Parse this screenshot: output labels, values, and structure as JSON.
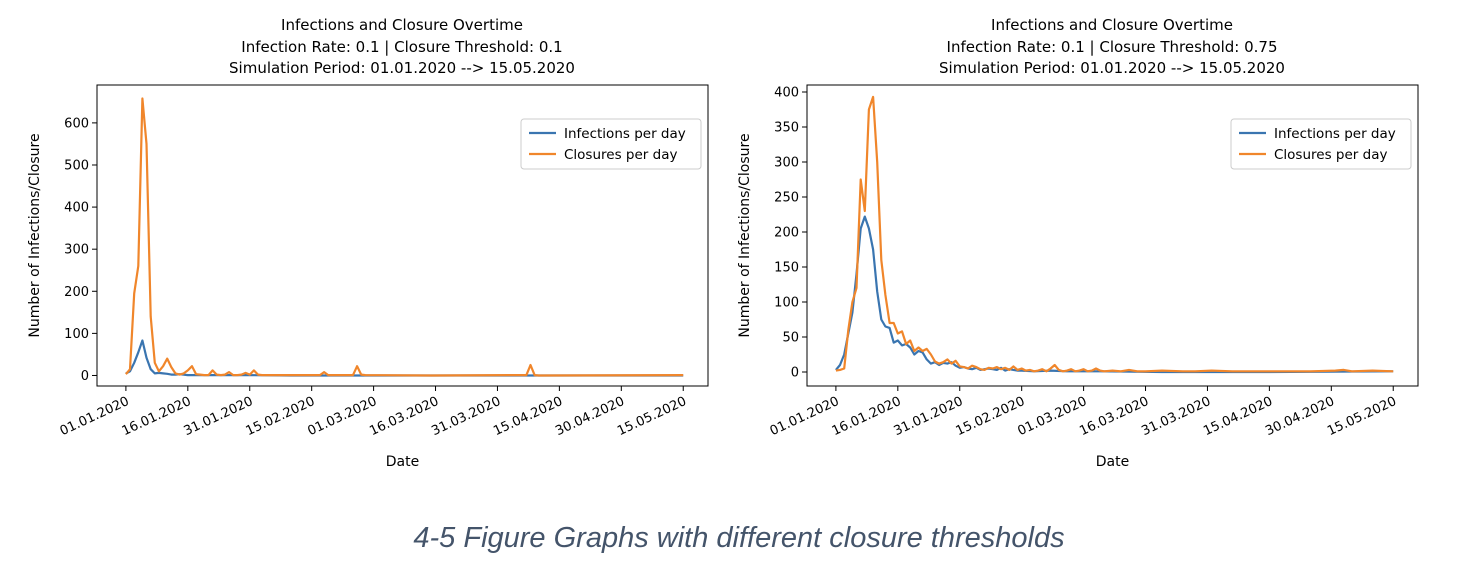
{
  "caption": "4-5 Figure Graphs with different closure thresholds",
  "colors": {
    "infections": "#3a75b0",
    "closures": "#f0862b"
  },
  "chart_data": [
    {
      "type": "line",
      "title_lines": [
        "Infections and Closure Overtime",
        "Infection Rate: 0.1 | Closure Threshold: 0.1",
        "Simulation Period: 01.01.2020 --> 15.05.2020"
      ],
      "xlabel": "Date",
      "ylabel": "Number of Infections/Closure",
      "x_type": "date",
      "x_range": [
        "2020-01-01",
        "2020-05-15"
      ],
      "xlim": [
        "2019-12-25",
        "2020-05-21"
      ],
      "ylim": [
        -25,
        690
      ],
      "yticks": [
        0,
        100,
        200,
        300,
        400,
        500,
        600
      ],
      "xtick_labels": [
        "01.01.2020",
        "16.01.2020",
        "31.01.2020",
        "15.02.2020",
        "01.03.2020",
        "16.03.2020",
        "31.03.2020",
        "15.04.2020",
        "30.04.2020",
        "15.05.2020"
      ],
      "xtick_dates": [
        "2020-01-01",
        "2020-01-16",
        "2020-01-31",
        "2020-02-15",
        "2020-03-01",
        "2020-03-16",
        "2020-03-31",
        "2020-04-15",
        "2020-04-30",
        "2020-05-15"
      ],
      "legend_position": "upper right",
      "grid": false,
      "series": [
        {
          "name": "Infections per day",
          "color": "#3a75b0",
          "points": [
            [
              "2020-01-01",
              5
            ],
            [
              "2020-01-02",
              10
            ],
            [
              "2020-01-03",
              30
            ],
            [
              "2020-01-04",
              55
            ],
            [
              "2020-01-05",
              83
            ],
            [
              "2020-01-06",
              42
            ],
            [
              "2020-01-07",
              15
            ],
            [
              "2020-01-08",
              5
            ],
            [
              "2020-01-09",
              6
            ],
            [
              "2020-01-10",
              5
            ],
            [
              "2020-01-11",
              4
            ],
            [
              "2020-01-12",
              2
            ],
            [
              "2020-01-13",
              2
            ],
            [
              "2020-01-14",
              3
            ],
            [
              "2020-01-15",
              2
            ],
            [
              "2020-01-16",
              1
            ],
            [
              "2020-01-17",
              1
            ],
            [
              "2020-01-20",
              1
            ],
            [
              "2020-01-25",
              1
            ],
            [
              "2020-01-30",
              1
            ],
            [
              "2020-02-10",
              0
            ],
            [
              "2020-03-01",
              0
            ],
            [
              "2020-04-01",
              0
            ],
            [
              "2020-05-15",
              0
            ]
          ]
        },
        {
          "name": "Closures per day",
          "color": "#f0862b",
          "points": [
            [
              "2020-01-01",
              3
            ],
            [
              "2020-01-02",
              15
            ],
            [
              "2020-01-03",
              195
            ],
            [
              "2020-01-04",
              260
            ],
            [
              "2020-01-05",
              658
            ],
            [
              "2020-01-06",
              550
            ],
            [
              "2020-01-07",
              140
            ],
            [
              "2020-01-08",
              30
            ],
            [
              "2020-01-09",
              10
            ],
            [
              "2020-01-10",
              22
            ],
            [
              "2020-01-11",
              40
            ],
            [
              "2020-01-12",
              20
            ],
            [
              "2020-01-13",
              5
            ],
            [
              "2020-01-14",
              2
            ],
            [
              "2020-01-15",
              5
            ],
            [
              "2020-01-16",
              12
            ],
            [
              "2020-01-17",
              22
            ],
            [
              "2020-01-18",
              3
            ],
            [
              "2020-01-19",
              2
            ],
            [
              "2020-01-20",
              1
            ],
            [
              "2020-01-21",
              1
            ],
            [
              "2020-01-22",
              12
            ],
            [
              "2020-01-23",
              2
            ],
            [
              "2020-01-24",
              1
            ],
            [
              "2020-01-25",
              2
            ],
            [
              "2020-01-26",
              8
            ],
            [
              "2020-01-27",
              1
            ],
            [
              "2020-01-28",
              1
            ],
            [
              "2020-01-29",
              2
            ],
            [
              "2020-01-30",
              6
            ],
            [
              "2020-01-31",
              2
            ],
            [
              "2020-02-01",
              12
            ],
            [
              "2020-02-02",
              2
            ],
            [
              "2020-02-03",
              1
            ],
            [
              "2020-02-08",
              1
            ],
            [
              "2020-02-17",
              1
            ],
            [
              "2020-02-18",
              8
            ],
            [
              "2020-02-19",
              1
            ],
            [
              "2020-02-25",
              1
            ],
            [
              "2020-02-26",
              22
            ],
            [
              "2020-02-27",
              2
            ],
            [
              "2020-02-28",
              1
            ],
            [
              "2020-03-15",
              0
            ],
            [
              "2020-04-05",
              1
            ],
            [
              "2020-04-07",
              1
            ],
            [
              "2020-04-08",
              25
            ],
            [
              "2020-04-09",
              1
            ],
            [
              "2020-04-10",
              0
            ],
            [
              "2020-05-15",
              1
            ]
          ]
        }
      ]
    },
    {
      "type": "line",
      "title_lines": [
        "Infections and Closure Overtime",
        "Infection Rate: 0.1 | Closure Threshold: 0.75",
        "Simulation Period: 01.01.2020 --> 15.05.2020"
      ],
      "xlabel": "Date",
      "ylabel": "Number of Infections/Closure",
      "x_type": "date",
      "x_range": [
        "2020-01-01",
        "2020-05-15"
      ],
      "xlim": [
        "2019-12-25",
        "2020-05-21"
      ],
      "ylim": [
        -20,
        410
      ],
      "yticks": [
        0,
        50,
        100,
        150,
        200,
        250,
        300,
        350,
        400
      ],
      "xtick_labels": [
        "01.01.2020",
        "16.01.2020",
        "31.01.2020",
        "15.02.2020",
        "01.03.2020",
        "16.03.2020",
        "31.03.2020",
        "15.04.2020",
        "30.04.2020",
        "15.05.2020"
      ],
      "xtick_dates": [
        "2020-01-01",
        "2020-01-16",
        "2020-01-31",
        "2020-02-15",
        "2020-03-01",
        "2020-03-16",
        "2020-03-31",
        "2020-04-15",
        "2020-04-30",
        "2020-05-15"
      ],
      "legend_position": "upper right",
      "grid": false,
      "series": [
        {
          "name": "Infections per day",
          "color": "#3a75b0",
          "points": [
            [
              "2020-01-01",
              3
            ],
            [
              "2020-01-02",
              10
            ],
            [
              "2020-01-03",
              25
            ],
            [
              "2020-01-04",
              55
            ],
            [
              "2020-01-05",
              85
            ],
            [
              "2020-01-06",
              140
            ],
            [
              "2020-01-07",
              205
            ],
            [
              "2020-01-08",
              222
            ],
            [
              "2020-01-09",
              205
            ],
            [
              "2020-01-10",
              175
            ],
            [
              "2020-01-11",
              115
            ],
            [
              "2020-01-12",
              75
            ],
            [
              "2020-01-13",
              65
            ],
            [
              "2020-01-14",
              63
            ],
            [
              "2020-01-15",
              42
            ],
            [
              "2020-01-16",
              45
            ],
            [
              "2020-01-17",
              38
            ],
            [
              "2020-01-18",
              40
            ],
            [
              "2020-01-19",
              35
            ],
            [
              "2020-01-20",
              25
            ],
            [
              "2020-01-21",
              30
            ],
            [
              "2020-01-22",
              28
            ],
            [
              "2020-01-23",
              18
            ],
            [
              "2020-01-24",
              12
            ],
            [
              "2020-01-25",
              14
            ],
            [
              "2020-01-26",
              10
            ],
            [
              "2020-01-27",
              13
            ],
            [
              "2020-01-28",
              12
            ],
            [
              "2020-01-29",
              14
            ],
            [
              "2020-01-30",
              9
            ],
            [
              "2020-01-31",
              6
            ],
            [
              "2020-02-01",
              7
            ],
            [
              "2020-02-02",
              5
            ],
            [
              "2020-02-03",
              4
            ],
            [
              "2020-02-04",
              6
            ],
            [
              "2020-02-05",
              3
            ],
            [
              "2020-02-06",
              4
            ],
            [
              "2020-02-07",
              5
            ],
            [
              "2020-02-08",
              4
            ],
            [
              "2020-02-09",
              3
            ],
            [
              "2020-02-10",
              6
            ],
            [
              "2020-02-11",
              2
            ],
            [
              "2020-02-12",
              4
            ],
            [
              "2020-02-13",
              3
            ],
            [
              "2020-02-14",
              2
            ],
            [
              "2020-02-15",
              2
            ],
            [
              "2020-02-18",
              1
            ],
            [
              "2020-02-22",
              2
            ],
            [
              "2020-02-26",
              1
            ],
            [
              "2020-03-05",
              1
            ],
            [
              "2020-03-20",
              0
            ],
            [
              "2020-04-15",
              0
            ],
            [
              "2020-05-15",
              1
            ]
          ]
        },
        {
          "name": "Closures per day",
          "color": "#f0862b",
          "points": [
            [
              "2020-01-01",
              2
            ],
            [
              "2020-01-02",
              3
            ],
            [
              "2020-01-03",
              5
            ],
            [
              "2020-01-04",
              60
            ],
            [
              "2020-01-05",
              100
            ],
            [
              "2020-01-06",
              120
            ],
            [
              "2020-01-07",
              275
            ],
            [
              "2020-01-08",
              230
            ],
            [
              "2020-01-09",
              375
            ],
            [
              "2020-01-10",
              393
            ],
            [
              "2020-01-11",
              300
            ],
            [
              "2020-01-12",
              160
            ],
            [
              "2020-01-13",
              110
            ],
            [
              "2020-01-14",
              70
            ],
            [
              "2020-01-15",
              70
            ],
            [
              "2020-01-16",
              55
            ],
            [
              "2020-01-17",
              58
            ],
            [
              "2020-01-18",
              40
            ],
            [
              "2020-01-19",
              45
            ],
            [
              "2020-01-20",
              30
            ],
            [
              "2020-01-21",
              35
            ],
            [
              "2020-01-22",
              30
            ],
            [
              "2020-01-23",
              33
            ],
            [
              "2020-01-24",
              25
            ],
            [
              "2020-01-25",
              15
            ],
            [
              "2020-01-26",
              12
            ],
            [
              "2020-01-27",
              14
            ],
            [
              "2020-01-28",
              18
            ],
            [
              "2020-01-29",
              12
            ],
            [
              "2020-01-30",
              16
            ],
            [
              "2020-01-31",
              8
            ],
            [
              "2020-02-01",
              7
            ],
            [
              "2020-02-02",
              5
            ],
            [
              "2020-02-03",
              9
            ],
            [
              "2020-02-04",
              7
            ],
            [
              "2020-02-05",
              4
            ],
            [
              "2020-02-06",
              3
            ],
            [
              "2020-02-07",
              6
            ],
            [
              "2020-02-08",
              5
            ],
            [
              "2020-02-09",
              7
            ],
            [
              "2020-02-10",
              4
            ],
            [
              "2020-02-11",
              6
            ],
            [
              "2020-02-12",
              3
            ],
            [
              "2020-02-13",
              8
            ],
            [
              "2020-02-14",
              3
            ],
            [
              "2020-02-15",
              5
            ],
            [
              "2020-02-16",
              2
            ],
            [
              "2020-02-17",
              3
            ],
            [
              "2020-02-18",
              1
            ],
            [
              "2020-02-19",
              2
            ],
            [
              "2020-02-20",
              4
            ],
            [
              "2020-02-21",
              1
            ],
            [
              "2020-02-22",
              5
            ],
            [
              "2020-02-23",
              10
            ],
            [
              "2020-02-24",
              3
            ],
            [
              "2020-02-25",
              1
            ],
            [
              "2020-02-26",
              2
            ],
            [
              "2020-02-27",
              4
            ],
            [
              "2020-02-28",
              1
            ],
            [
              "2020-02-29",
              2
            ],
            [
              "2020-03-01",
              4
            ],
            [
              "2020-03-02",
              1
            ],
            [
              "2020-03-03",
              2
            ],
            [
              "2020-03-04",
              5
            ],
            [
              "2020-03-05",
              2
            ],
            [
              "2020-03-06",
              1
            ],
            [
              "2020-03-08",
              2
            ],
            [
              "2020-03-10",
              1
            ],
            [
              "2020-03-12",
              3
            ],
            [
              "2020-03-14",
              1
            ],
            [
              "2020-03-16",
              1
            ],
            [
              "2020-03-20",
              2
            ],
            [
              "2020-03-25",
              1
            ],
            [
              "2020-03-28",
              1
            ],
            [
              "2020-04-01",
              2
            ],
            [
              "2020-04-06",
              1
            ],
            [
              "2020-04-12",
              1
            ],
            [
              "2020-04-20",
              1
            ],
            [
              "2020-04-25",
              1
            ],
            [
              "2020-05-01",
              2
            ],
            [
              "2020-05-03",
              3
            ],
            [
              "2020-05-05",
              1
            ],
            [
              "2020-05-10",
              2
            ],
            [
              "2020-05-15",
              1
            ]
          ]
        }
      ]
    }
  ]
}
